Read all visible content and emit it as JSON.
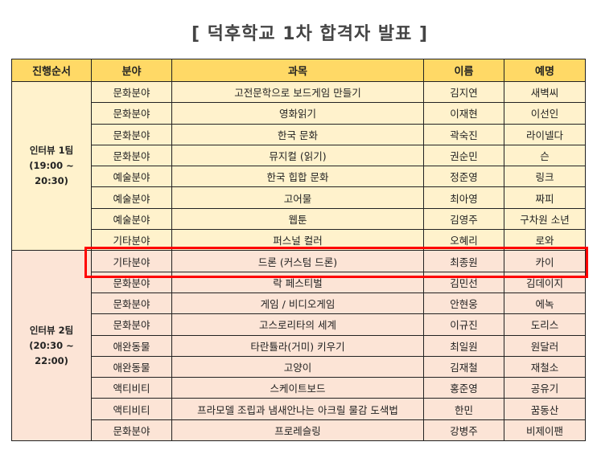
{
  "title": "[ 덕후학교 1차 합격자 발표 ]",
  "headers": [
    "진행순서",
    "분야",
    "과목",
    "이름",
    "예명"
  ],
  "groups": [
    {
      "label": "인터뷰 1팀 (19:00 ~ 20:30)",
      "rows": [
        [
          "문화분야",
          "고전문학으로 보드게임 만들기",
          "김지연",
          "새벽씨"
        ],
        [
          "문화분야",
          "영화읽기",
          "이재현",
          "이선인"
        ],
        [
          "문화분야",
          "한국 문화",
          "곽숙진",
          "라이넬다"
        ],
        [
          "문화분야",
          "뮤지컬 (읽기)",
          "권순민",
          "슨"
        ],
        [
          "예술분야",
          "한국 힙합 문화",
          "정준영",
          "링크"
        ],
        [
          "예술분야",
          "고어물",
          "최아영",
          "짜피"
        ],
        [
          "예술분야",
          "웹툰",
          "김영주",
          "구차원 소년"
        ],
        [
          "기타분야",
          "퍼스널 컬러",
          "오혜리",
          "로와"
        ]
      ]
    },
    {
      "label": "인터뷰 2팀 (20:30 ~ 22:00)",
      "rows": [
        [
          "기타분야",
          "드론 (커스텀 드론)",
          "최종원",
          "카이"
        ],
        [
          "문화분야",
          "락 페스티벌",
          "김민선",
          "김데이지"
        ],
        [
          "문화분야",
          "게임 / 비디오게임",
          "안현웅",
          "에녹"
        ],
        [
          "문화분야",
          "고스로리타의 세계",
          "이규진",
          "도리스"
        ],
        [
          "애완동물",
          "타란튤라(거미) 키우기",
          "최일원",
          "원달러"
        ],
        [
          "애완동물",
          "고양이",
          "김재철",
          "재철소"
        ],
        [
          "액티비티",
          "스케이트보드",
          "홍준영",
          "공유기"
        ],
        [
          "액티비티",
          "프라모델 조립과 냄새안나는 아크릴 물감 도색법",
          "한민",
          "꿈동산"
        ],
        [
          "문화분야",
          "프로레슬링",
          "강병주",
          "비제이팬"
        ]
      ]
    }
  ],
  "highlighted_row": "드론 (커스텀 드론)",
  "colors": {
    "header": "#ffd966",
    "group1": "#fff2cc",
    "group2": "#fce4d6",
    "highlight": "#ff0000"
  }
}
